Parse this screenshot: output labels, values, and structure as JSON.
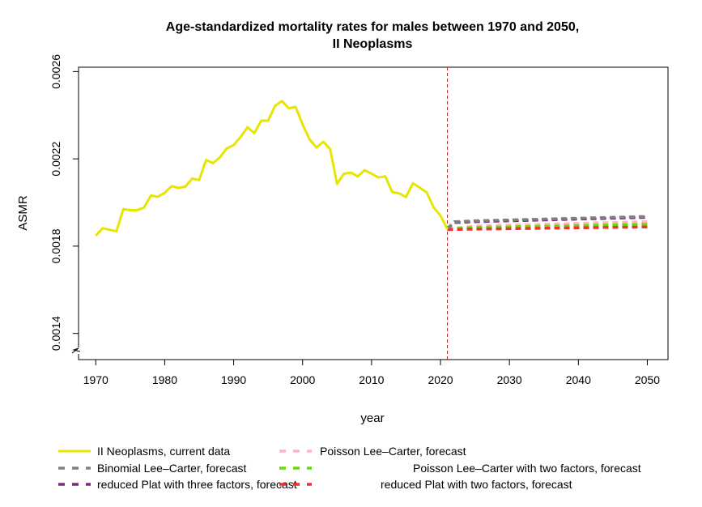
{
  "chart_data": {
    "type": "line",
    "title_lines": [
      "Age-standardized mortality rates for males between 1970 and 2050,",
      "II Neoplasms"
    ],
    "xlabel": "year",
    "ylabel": "ASMR",
    "xlim": [
      1967.5,
      2053.0
    ],
    "ylim": [
      0.00128,
      0.00262
    ],
    "x_ticks": [
      1970,
      1980,
      1990,
      2000,
      2010,
      2020,
      2030,
      2040,
      2050
    ],
    "y_ticks": [
      0.0014,
      0.0018,
      0.0022,
      0.0026
    ],
    "y_tick_labels": [
      "0.0014",
      "0.0018",
      "0.0022",
      "0.0026"
    ],
    "axis_break": true,
    "vline_x": 2021,
    "legend_position": "bottom",
    "series": [
      {
        "name": "II Neoplasms, current data",
        "color": "#e6e600",
        "style": "solid",
        "x": [
          1970,
          1971,
          1972,
          1973,
          1974,
          1975,
          1976,
          1977,
          1978,
          1979,
          1980,
          1981,
          1982,
          1983,
          1984,
          1985,
          1986,
          1987,
          1988,
          1989,
          1990,
          1991,
          1992,
          1993,
          1994,
          1995,
          1996,
          1997,
          1998,
          1999,
          2000,
          2001,
          2002,
          2003,
          2004,
          2005,
          2006,
          2007,
          2008,
          2009,
          2010,
          2011,
          2012,
          2013,
          2014,
          2015,
          2016,
          2017,
          2018,
          2019,
          2020,
          2021
        ],
        "y": [
          0.001848,
          0.001882,
          0.001875,
          0.001868,
          0.00197,
          0.001965,
          0.001965,
          0.001977,
          0.002032,
          0.002026,
          0.002045,
          0.002075,
          0.002067,
          0.002073,
          0.00211,
          0.002103,
          0.002195,
          0.00218,
          0.002207,
          0.002248,
          0.002263,
          0.0023,
          0.002345,
          0.002318,
          0.002375,
          0.002375,
          0.002443,
          0.002465,
          0.002432,
          0.002438,
          0.002358,
          0.00229,
          0.002252,
          0.002278,
          0.002245,
          0.002085,
          0.002132,
          0.002137,
          0.00212,
          0.002148,
          0.002132,
          0.002115,
          0.00212,
          0.002048,
          0.002042,
          0.002025,
          0.002088,
          0.002068,
          0.002046,
          0.001978,
          0.00194,
          0.001878
        ]
      },
      {
        "name": "Poisson Lee–Carter, forecast",
        "color": "#ffb6c1",
        "style": "dashed",
        "x": [
          2021,
          2025,
          2030,
          2035,
          2040,
          2045,
          2050
        ],
        "y": [
          0.00188,
          0.001892,
          0.001896,
          0.0019,
          0.001904,
          0.001908,
          0.001912
        ]
      },
      {
        "name": "Binomial Lee–Carter, forecast",
        "color": "#808080",
        "style": "dashed",
        "x": [
          2021,
          2022,
          2025,
          2030,
          2035,
          2040,
          2045,
          2050
        ],
        "y": [
          0.00188,
          0.001912,
          0.001916,
          0.00192,
          0.001924,
          0.001928,
          0.001932,
          0.001936
        ]
      },
      {
        "name": "Poisson Lee–Carter with two factors, forecast",
        "color": "#66dd00",
        "style": "dashed",
        "x": [
          2021,
          2025,
          2030,
          2035,
          2040,
          2045,
          2050
        ],
        "y": [
          0.001878,
          0.001886,
          0.001888,
          0.001891,
          0.001894,
          0.001897,
          0.0019
        ]
      },
      {
        "name": "reduced Plat with three factors, forecast",
        "color": "#7b2d7b",
        "style": "dashed",
        "x": [
          2021,
          2022,
          2025,
          2030,
          2035,
          2040,
          2045,
          2050
        ],
        "y": [
          0.00188,
          0.001908,
          0.001912,
          0.001916,
          0.00192,
          0.001924,
          0.001928,
          0.001932
        ]
      },
      {
        "name": "reduced Plat with two factors, forecast",
        "color": "#ee3333",
        "style": "dashed",
        "x": [
          2021,
          2025,
          2030,
          2035,
          2040,
          2045,
          2050
        ],
        "y": [
          0.001876,
          0.001878,
          0.00188,
          0.001882,
          0.001884,
          0.001886,
          0.001888
        ]
      }
    ],
    "legend": [
      {
        "series_index": 0,
        "col": 0,
        "row": 0
      },
      {
        "series_index": 1,
        "col": 1,
        "row": 0
      },
      {
        "series_index": 2,
        "col": 0,
        "row": 1
      },
      {
        "series_index": 3,
        "col": 1,
        "row": 1
      },
      {
        "series_index": 4,
        "col": 0,
        "row": 2
      },
      {
        "series_index": 5,
        "col": 1,
        "row": 2
      }
    ]
  }
}
